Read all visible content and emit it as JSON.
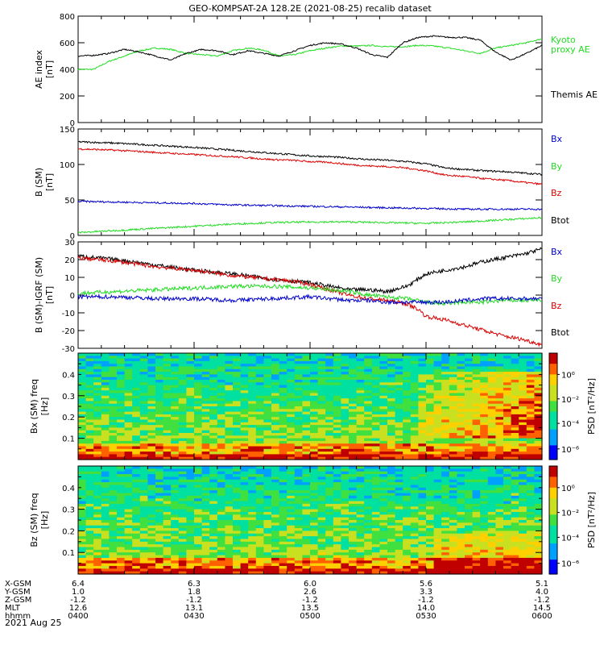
{
  "title": "GEO-KOMPSAT-2A 128.2E (2021-08-25) recalib dataset",
  "date_label": "2021 Aug 25",
  "ephemeris": {
    "rows": [
      {
        "label": "X-GSM",
        "values": [
          "6.4",
          "6.3",
          "6.0",
          "5.6",
          "5.1"
        ]
      },
      {
        "label": "Y-GSM",
        "values": [
          "1.0",
          "1.8",
          "2.6",
          "3.3",
          "4.0"
        ]
      },
      {
        "label": "Z-GSM",
        "values": [
          "-1.2",
          "-1.2",
          "-1.2",
          "-1.2",
          "-1.2"
        ]
      },
      {
        "label": "MLT",
        "values": [
          "12.6",
          "13.1",
          "13.5",
          "14.0",
          "14.5"
        ]
      },
      {
        "label": "hhmm",
        "values": [
          "0400",
          "0430",
          "0500",
          "0530",
          "0600"
        ]
      }
    ]
  },
  "colors": {
    "black": "#000000",
    "red": "#dd0000",
    "green": "#22dd22",
    "blue": "#0000cc",
    "kyoto": "#22dd22"
  },
  "chart_data": [
    {
      "type": "line",
      "ylabel": "AE index [nT]",
      "ylim": [
        0,
        800
      ],
      "yticks": [
        0,
        200,
        400,
        600,
        800
      ],
      "xlim": [
        0,
        120
      ],
      "legend": [
        "Kyoto proxy AE",
        "Themis AE"
      ],
      "series": [
        {
          "name": "Kyoto proxy AE",
          "color": "#22dd22",
          "x": [
            0,
            4,
            8,
            12,
            16,
            20,
            24,
            28,
            32,
            36,
            40,
            44,
            48,
            52,
            56,
            60,
            64,
            68,
            72,
            76,
            80,
            84,
            88,
            92,
            96,
            100,
            104,
            108,
            112,
            116,
            120
          ],
          "values": [
            400,
            400,
            460,
            500,
            540,
            560,
            550,
            520,
            510,
            500,
            540,
            560,
            545,
            500,
            510,
            540,
            560,
            575,
            575,
            580,
            570,
            570,
            580,
            575,
            560,
            540,
            520,
            560,
            580,
            600,
            630
          ]
        },
        {
          "name": "Themis AE",
          "color": "#000000",
          "x": [
            0,
            4,
            8,
            12,
            16,
            20,
            24,
            28,
            32,
            36,
            40,
            44,
            48,
            52,
            56,
            60,
            64,
            68,
            72,
            76,
            80,
            84,
            88,
            92,
            96,
            100,
            104,
            108,
            112,
            116,
            120
          ],
          "values": [
            500,
            505,
            520,
            550,
            530,
            500,
            470,
            520,
            550,
            540,
            510,
            540,
            520,
            500,
            540,
            580,
            600,
            590,
            560,
            510,
            490,
            600,
            640,
            650,
            640,
            640,
            620,
            530,
            470,
            520,
            580
          ]
        }
      ]
    },
    {
      "type": "line",
      "ylabel": "B (SM) [nT]",
      "ylim": [
        0,
        150
      ],
      "yticks": [
        0,
        50,
        100,
        150
      ],
      "xlim": [
        0,
        120
      ],
      "legend": [
        "Bx",
        "By",
        "Bz",
        "Btot"
      ],
      "series": [
        {
          "name": "Btot",
          "color": "#000000",
          "x": [
            0,
            10,
            20,
            30,
            40,
            50,
            55,
            60,
            65,
            70,
            75,
            80,
            85,
            90,
            95,
            100,
            105,
            110,
            115,
            120
          ],
          "values": [
            132,
            130,
            127,
            124,
            120,
            116,
            114,
            112,
            111,
            109,
            107,
            106,
            104,
            101,
            95,
            93,
            91,
            90,
            88,
            86
          ]
        },
        {
          "name": "Bz",
          "color": "#dd0000",
          "x": [
            0,
            10,
            20,
            30,
            40,
            50,
            55,
            60,
            65,
            70,
            75,
            80,
            85,
            90,
            95,
            100,
            105,
            110,
            115,
            120
          ],
          "values": [
            122,
            120,
            117,
            114,
            111,
            107,
            106,
            104,
            103,
            100,
            98,
            97,
            95,
            91,
            85,
            83,
            80,
            78,
            75,
            72
          ]
        },
        {
          "name": "Bx",
          "color": "#0000cc",
          "x": [
            0,
            10,
            20,
            30,
            40,
            50,
            60,
            70,
            80,
            90,
            100,
            110,
            120
          ],
          "values": [
            48,
            47,
            46,
            45,
            43,
            42,
            41,
            40,
            39,
            38,
            37,
            37,
            37
          ]
        },
        {
          "name": "By",
          "color": "#22dd22",
          "x": [
            0,
            10,
            20,
            30,
            40,
            50,
            60,
            70,
            80,
            90,
            100,
            110,
            120
          ],
          "values": [
            4,
            7,
            10,
            13,
            16,
            18,
            19,
            19,
            18,
            17,
            19,
            22,
            25
          ]
        }
      ]
    },
    {
      "type": "line",
      "ylabel": "B (SM)-IGRF (SM) [nT]",
      "ylim": [
        -30,
        30
      ],
      "yticks": [
        -30,
        -20,
        -10,
        0,
        10,
        20,
        30
      ],
      "xlim": [
        0,
        120
      ],
      "legend": [
        "Bx",
        "By",
        "Bz",
        "Btot"
      ],
      "series": [
        {
          "name": "Btot",
          "color": "#000000",
          "x": [
            0,
            10,
            20,
            30,
            40,
            50,
            55,
            60,
            65,
            70,
            75,
            80,
            85,
            88,
            90,
            95,
            100,
            105,
            110,
            115,
            120
          ],
          "values": [
            22,
            20,
            17,
            14,
            12,
            9,
            8,
            7,
            5,
            3,
            3,
            2,
            5,
            9,
            12,
            14,
            16,
            19,
            21,
            23,
            26
          ]
        },
        {
          "name": "Bz",
          "color": "#dd0000",
          "x": [
            0,
            10,
            20,
            30,
            40,
            50,
            55,
            60,
            65,
            70,
            75,
            80,
            85,
            88,
            90,
            95,
            100,
            105,
            110,
            115,
            120
          ],
          "values": [
            21,
            19,
            16,
            14,
            11,
            9,
            8,
            6,
            3,
            0,
            -2,
            -3,
            -5,
            -8,
            -12,
            -14,
            -17,
            -20,
            -23,
            -25,
            -28
          ]
        },
        {
          "name": "By",
          "color": "#22dd22",
          "x": [
            0,
            10,
            20,
            30,
            40,
            50,
            60,
            70,
            75,
            80,
            85,
            90,
            95,
            100,
            105,
            110,
            115,
            120
          ],
          "values": [
            1,
            2,
            3,
            4,
            5,
            5,
            4,
            2,
            0,
            -1,
            -2,
            -4,
            -5,
            -4,
            -4,
            -3,
            -3,
            -3
          ]
        },
        {
          "name": "Bx",
          "color": "#0000cc",
          "x": [
            0,
            10,
            20,
            30,
            40,
            50,
            60,
            70,
            75,
            80,
            85,
            90,
            95,
            100,
            105,
            110,
            115,
            120
          ],
          "values": [
            -1,
            -1,
            -2,
            -2,
            -3,
            -2,
            -1,
            -3,
            -3,
            -4,
            -4,
            -4,
            -4,
            -3,
            -2,
            -2,
            -2,
            -2
          ]
        }
      ]
    },
    {
      "type": "heatmap",
      "ylabel": "Bx (SM) freq [Hz]",
      "yticks": [
        0.1,
        0.2,
        0.3,
        0.4
      ],
      "ylim": [
        0,
        0.5
      ],
      "colorbar_label": "PSD [nT²/Hz]",
      "colorbar_ticks": [
        "10⁰",
        "10⁻²",
        "10⁻⁴",
        "10⁻⁶"
      ],
      "colorbar_exponents": [
        0,
        -2,
        -4,
        -6
      ],
      "intensity_profile": "low frequencies yellow-red, higher frequencies green-cyan, strong red enhancement after 0540 at 0.15-0.4 Hz"
    },
    {
      "type": "heatmap",
      "ylabel": "Bz (SM) freq [Hz]",
      "yticks": [
        0.1,
        0.2,
        0.3,
        0.4
      ],
      "ylim": [
        0,
        0.5
      ],
      "colorbar_label": "PSD [nT²/Hz]",
      "colorbar_ticks": [
        "10⁰",
        "10⁻²",
        "10⁻⁴",
        "10⁻⁶"
      ],
      "colorbar_exponents": [
        0,
        -2,
        -4,
        -6
      ],
      "intensity_profile": "mostly green with yellow-red below 0.1 Hz, orange-red patches after 0540 below 0.2 Hz"
    }
  ],
  "side_labels": {
    "ae": [
      "Kyoto",
      "proxy AE",
      "Themis AE"
    ],
    "b": [
      "Bx",
      "By",
      "Bz",
      "Btot"
    ],
    "db": [
      "Bx",
      "By",
      "Bz",
      "Btot"
    ]
  }
}
